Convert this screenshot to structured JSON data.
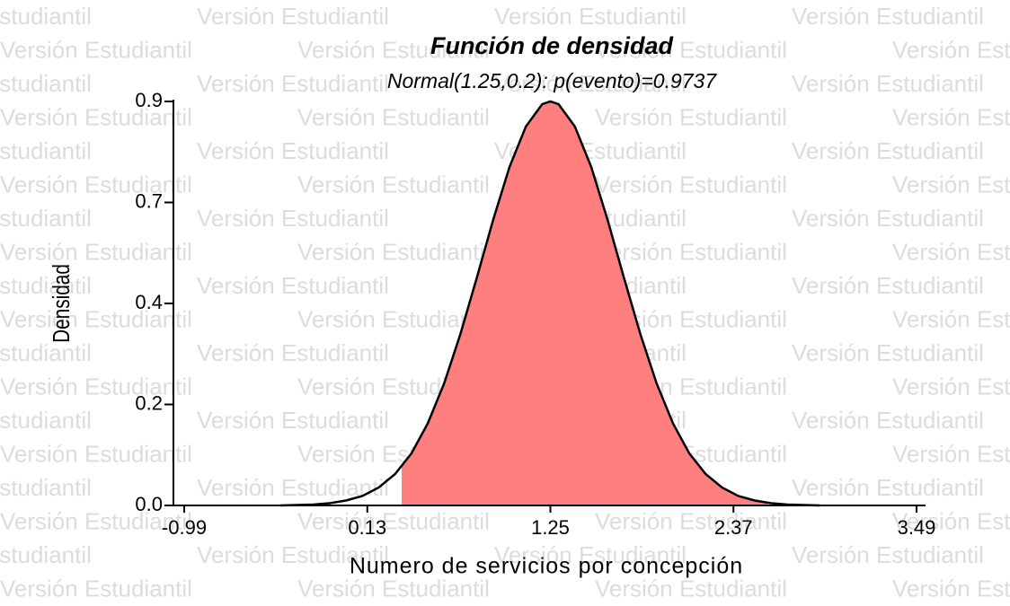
{
  "chart_data": {
    "type": "area",
    "title": "Función de densidad",
    "subtitle": "Normal(1.25,0.2): p(evento)=0.9737",
    "x_label": "Numero de servicios por concepción",
    "y_label": "Densidad",
    "watermark": "Versión Estudiantil",
    "x": [
      -0.4,
      -0.3,
      -0.2,
      -0.1,
      0.0,
      0.1,
      0.2,
      0.3,
      0.4,
      0.5,
      0.6,
      0.7,
      0.8,
      0.9,
      1.0,
      1.1,
      1.2,
      1.25,
      1.3,
      1.4,
      1.5,
      1.6,
      1.7,
      1.8,
      1.9,
      2.0,
      2.1,
      2.2,
      2.3,
      2.4,
      2.5,
      2.6,
      2.7,
      2.8,
      2.9
    ],
    "values": [
      0.0,
      0.001,
      0.002,
      0.005,
      0.011,
      0.021,
      0.04,
      0.07,
      0.116,
      0.183,
      0.272,
      0.382,
      0.507,
      0.636,
      0.754,
      0.844,
      0.894,
      0.9,
      0.894,
      0.844,
      0.754,
      0.636,
      0.507,
      0.382,
      0.272,
      0.183,
      0.116,
      0.07,
      0.04,
      0.021,
      0.011,
      0.005,
      0.002,
      0.001,
      0.0
    ],
    "shade_range": [
      0.34,
      2.58
    ],
    "color": "#ff7f7f",
    "line_color": "#000000",
    "xlim": [
      -1.056,
      3.545
    ],
    "xticks": [
      -0.99,
      0.13,
      1.25,
      2.37,
      3.49
    ],
    "ylim": [
      0,
      0.9
    ],
    "yticks": [
      {
        "value": 0,
        "label": "0.0"
      },
      {
        "value": 0.225,
        "label": "0.2"
      },
      {
        "value": 0.45,
        "label": "0.4"
      },
      {
        "value": 0.675,
        "label": "0.7"
      },
      0.9
    ]
  }
}
